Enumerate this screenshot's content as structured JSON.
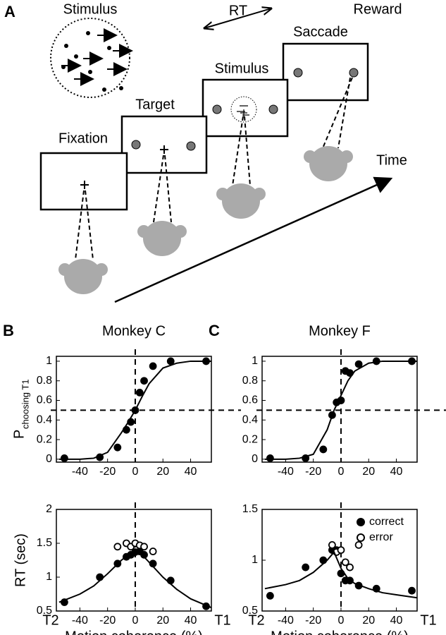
{
  "diagram": {
    "panel_label": "A",
    "stimulus_label": "Stimulus",
    "rt": "RT",
    "reward": "Reward",
    "saccade": "Saccade",
    "stimulus": "Stimulus",
    "target": "Target",
    "fixation": "Fixation",
    "time": "Time"
  },
  "chart_data": [
    {
      "type": "scatter",
      "panel_label": "B",
      "title": "Monkey C",
      "ylabel": {
        "main": "P",
        "sub": "choosing T1"
      },
      "xlim": [
        -57,
        55
      ],
      "ylim": [
        -0.03,
        1.05
      ],
      "xticks": [
        -40,
        -20,
        0,
        20,
        40
      ],
      "yticks": [
        0,
        0.2,
        0.4,
        0.6,
        0.8,
        1
      ],
      "hlines": [
        0.5
      ],
      "vlines": [
        0
      ],
      "legend": false,
      "series": [
        {
          "marker": "filled",
          "color": "#000",
          "x": [
            -51.2,
            -25.6,
            -12.8,
            -6.4,
            -3.2,
            0,
            3.2,
            6.4,
            12.8,
            25.6,
            51.2
          ],
          "values": [
            0.01,
            0.02,
            0.12,
            0.3,
            0.38,
            0.5,
            0.68,
            0.8,
            0.95,
            1,
            1
          ]
        },
        {
          "marker": "line",
          "color": "#000",
          "x": [
            -55,
            -40,
            -30,
            -20,
            -10,
            -5,
            0,
            5,
            10,
            20,
            30,
            40,
            55
          ],
          "values": [
            0,
            0,
            0.01,
            0.07,
            0.27,
            0.38,
            0.5,
            0.64,
            0.77,
            0.93,
            0.98,
            1,
            1
          ]
        }
      ]
    },
    {
      "type": "scatter",
      "xlabel": "Motion coherence (%)",
      "ylabel": "RT (sec)",
      "xlim": [
        -57,
        55
      ],
      "ylim": [
        0.5,
        2
      ],
      "xticks": [
        {
          "value": -57,
          "label": "T2"
        },
        -40,
        -20,
        0,
        20,
        40,
        {
          "value": 55,
          "label": "T1"
        }
      ],
      "yticks": [
        0.5,
        1,
        1.5,
        2
      ],
      "vlines": [
        0
      ],
      "legend": false,
      "series": [
        {
          "marker": "filled",
          "color": "#000",
          "x": [
            -51.2,
            -25.6,
            -12.8,
            -6.4,
            -3.2,
            0,
            3.2,
            6.4,
            12.8,
            25.6,
            51.2
          ],
          "values": [
            0.63,
            1.0,
            1.2,
            1.3,
            1.33,
            1.37,
            1.38,
            1.33,
            1.2,
            0.95,
            0.57
          ]
        },
        {
          "marker": "open",
          "color": "#000",
          "x": [
            -12.8,
            -6.4,
            -3.2,
            0,
            3.2,
            6.4,
            12.8
          ],
          "values": [
            1.45,
            1.5,
            1.45,
            1.5,
            1.47,
            1.45,
            1.38
          ]
        },
        {
          "marker": "line",
          "color": "#000",
          "x": [
            -55,
            -40,
            -30,
            -20,
            -10,
            -5,
            0,
            5,
            10,
            20,
            30,
            40,
            55
          ],
          "values": [
            0.63,
            0.75,
            0.87,
            1.05,
            1.25,
            1.33,
            1.37,
            1.33,
            1.22,
            1.0,
            0.82,
            0.68,
            0.55
          ]
        }
      ]
    },
    {
      "type": "scatter",
      "panel_label": "C",
      "title": "Monkey F",
      "xlim": [
        -57,
        55
      ],
      "ylim": [
        -0.03,
        1.05
      ],
      "xticks": [
        -40,
        -20,
        0,
        20,
        40
      ],
      "yticks": [
        0,
        0.2,
        0.4,
        0.6,
        0.8,
        1
      ],
      "hlines": [
        0.5
      ],
      "vlines": [
        0
      ],
      "legend": false,
      "series": [
        {
          "marker": "filled",
          "color": "#000",
          "x": [
            -51.2,
            -25.6,
            -12.8,
            -6.4,
            -3.2,
            0,
            3.2,
            6.4,
            12.8,
            25.6,
            51.2
          ],
          "values": [
            0.01,
            0.01,
            0.1,
            0.45,
            0.58,
            0.6,
            0.9,
            0.88,
            0.97,
            1,
            1
          ]
        },
        {
          "marker": "line",
          "color": "#000",
          "x": [
            -55,
            -40,
            -30,
            -20,
            -10,
            -5,
            0,
            5,
            10,
            20,
            30,
            40,
            55
          ],
          "values": [
            0,
            0,
            0.01,
            0.05,
            0.3,
            0.5,
            0.65,
            0.8,
            0.9,
            0.98,
            1,
            1,
            1
          ]
        }
      ]
    },
    {
      "type": "scatter",
      "xlabel": "Motion coherence (%)",
      "xlim": [
        -57,
        55
      ],
      "ylim": [
        0.5,
        1.5
      ],
      "xticks": [
        {
          "value": -57,
          "label": "T2"
        },
        -40,
        -20,
        0,
        20,
        40,
        {
          "value": 55,
          "label": "T1"
        }
      ],
      "yticks": [
        0.5,
        1,
        1.5
      ],
      "vlines": [
        0
      ],
      "legend": true,
      "series": [
        {
          "name": "correct",
          "marker": "filled",
          "color": "#000",
          "x": [
            -51.2,
            -25.6,
            -12.8,
            -6.4,
            -3.2,
            0,
            3.2,
            6.4,
            12.8,
            25.6,
            51.2
          ],
          "values": [
            0.65,
            0.93,
            1.0,
            1.1,
            1.1,
            0.87,
            0.8,
            0.8,
            0.75,
            0.72,
            0.7
          ]
        },
        {
          "name": "error",
          "marker": "open",
          "color": "#000",
          "x": [
            -6.4,
            -3.2,
            0,
            3.2,
            6.4,
            12.8
          ],
          "values": [
            1.15,
            1.08,
            1.1,
            0.98,
            0.93,
            1.15
          ]
        },
        {
          "marker": "line",
          "color": "#000",
          "x": [
            -55,
            -40,
            -30,
            -20,
            -10,
            -5,
            0,
            5,
            10,
            20,
            30,
            40,
            55
          ],
          "values": [
            0.72,
            0.76,
            0.8,
            0.88,
            1.0,
            1.08,
            0.92,
            0.82,
            0.77,
            0.72,
            0.68,
            0.66,
            0.63
          ]
        }
      ]
    }
  ]
}
